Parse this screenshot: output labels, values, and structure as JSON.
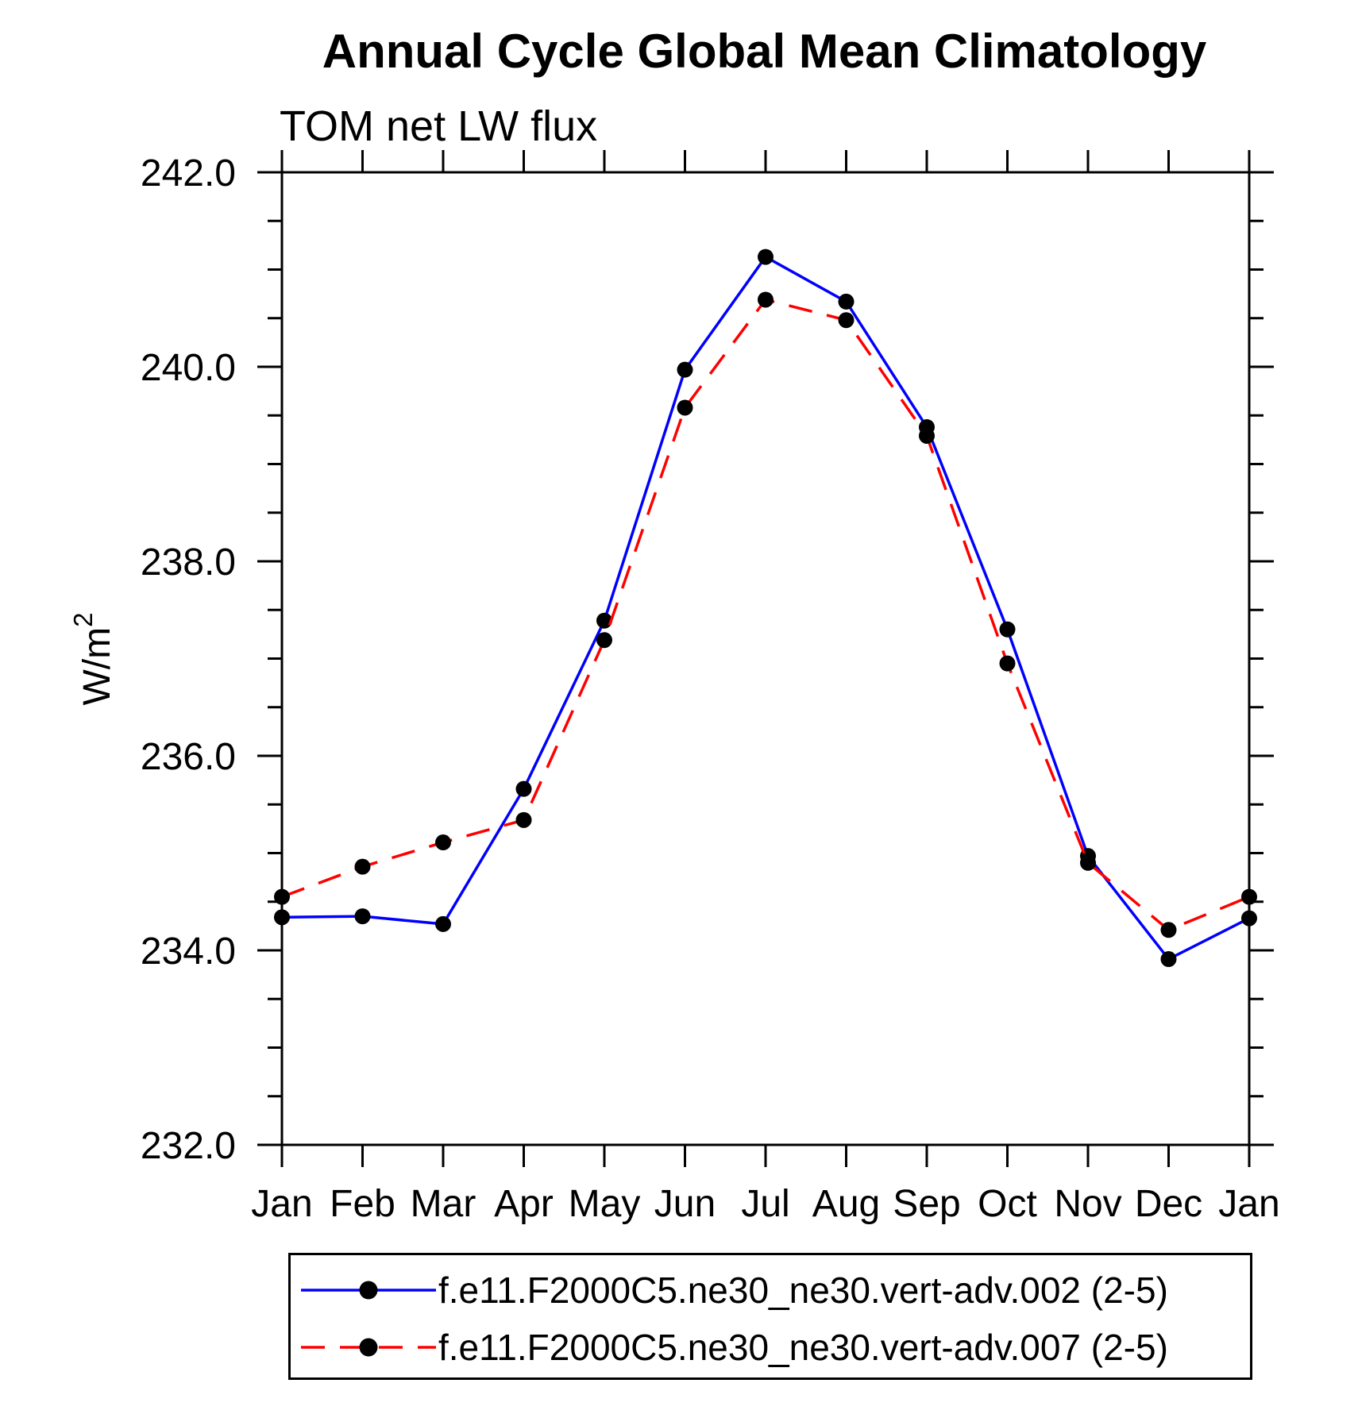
{
  "page": {
    "title": "Annual Cycle Global Mean Climatology",
    "subtitle": "TOM net LW flux"
  },
  "chart_data": {
    "type": "line",
    "title": "Annual Cycle Global Mean Climatology",
    "subtitle": "TOM net LW flux",
    "ylabel_base": "W/m",
    "ylabel_exp": "2",
    "categories": [
      "Jan",
      "Feb",
      "Mar",
      "Apr",
      "May",
      "Jun",
      "Jul",
      "Aug",
      "Sep",
      "Oct",
      "Nov",
      "Dec",
      "Jan"
    ],
    "series": [
      {
        "name": "f.e11.F2000C5.ne30_ne30.vert-adv.002 (2-5)",
        "color": "#0000ff",
        "line_style": "solid",
        "marker": "circle",
        "marker_color": "#000000",
        "values": [
          234.34,
          234.35,
          234.27,
          235.66,
          237.39,
          239.97,
          241.13,
          240.67,
          239.38,
          237.3,
          234.97,
          233.91,
          234.33
        ]
      },
      {
        "name": "f.e11.F2000C5.ne30_ne30.vert-adv.007 (2-5)",
        "color": "#ff0000",
        "line_style": "dashed",
        "marker": "circle",
        "marker_color": "#000000",
        "values": [
          234.55,
          234.86,
          235.11,
          235.34,
          237.19,
          239.58,
          240.69,
          240.48,
          239.29,
          236.95,
          234.9,
          234.21,
          234.55
        ]
      }
    ],
    "ylim": [
      232.0,
      242.0
    ],
    "y_major_step": 2.0,
    "y_minor_step": 0.5,
    "y_tick_labels": [
      "232.0",
      "234.0",
      "236.0",
      "238.0",
      "240.0",
      "242.0"
    ],
    "grid": false,
    "legend_position": "bottom",
    "frame_color": "#000000",
    "background_color": "#ffffff"
  }
}
